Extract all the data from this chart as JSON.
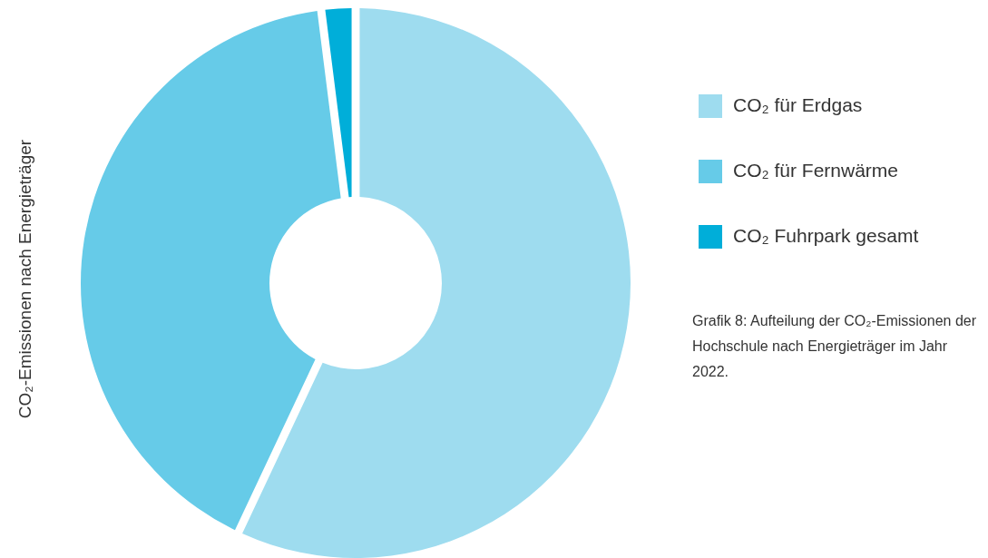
{
  "chart_data": {
    "type": "donut",
    "title": "CO₂-Emissionen nach Energieträger",
    "categories": [
      "CO₂ für Erdgas",
      "CO₂ für Fernwärme",
      "CO₂ Fuhrpark gesamt"
    ],
    "values": [
      57,
      41,
      2
    ],
    "colors": [
      "#9edcef",
      "#66cbe8",
      "#00aed9"
    ],
    "legend": "right",
    "annotations": [
      "Grafik 8: Aufteilung der CO₂-Emissionen der Hochschule nach Energieträger im Jahr 2022."
    ]
  }
}
